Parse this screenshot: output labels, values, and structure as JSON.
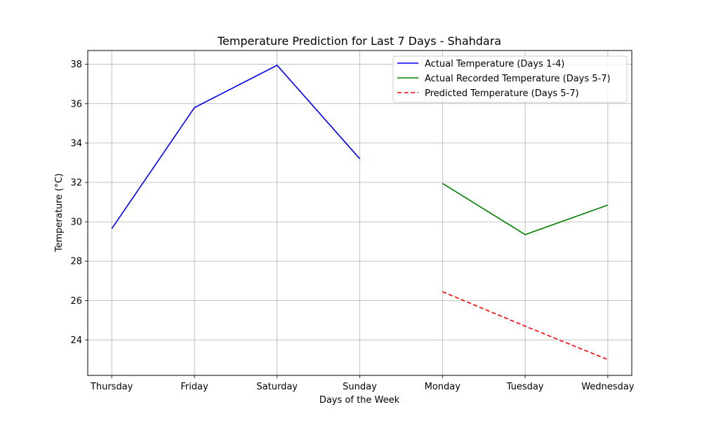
{
  "chart_data": {
    "type": "line",
    "title": "Temperature Prediction for Last 7 Days - Shahdara",
    "xlabel": "Days of the Week",
    "ylabel": "Temperature (°C)",
    "categories": [
      "Thursday",
      "Friday",
      "Saturday",
      "Sunday",
      "Monday",
      "Tuesday",
      "Wednesday"
    ],
    "ylim": [
      22.2,
      38.7
    ],
    "yticks": [
      24,
      26,
      28,
      30,
      32,
      34,
      36,
      38
    ],
    "grid": true,
    "legend_position": "top-right",
    "series": [
      {
        "name": "Actual Temperature (Days 1-4)",
        "color": "#0000ff",
        "style": "solid",
        "points": [
          [
            0,
            29.65
          ],
          [
            1,
            35.8
          ],
          [
            2,
            37.95
          ],
          [
            3,
            33.2
          ]
        ]
      },
      {
        "name": "Actual Recorded Temperature (Days 5-7)",
        "color": "#008000",
        "style": "solid",
        "points": [
          [
            4,
            31.95
          ],
          [
            5,
            29.35
          ],
          [
            6,
            30.85
          ]
        ]
      },
      {
        "name": "Predicted Temperature (Days 5-7)",
        "color": "#ff0000",
        "style": "dashed",
        "points": [
          [
            4,
            26.45
          ],
          [
            5,
            24.7
          ],
          [
            6,
            23.0
          ]
        ]
      }
    ]
  }
}
